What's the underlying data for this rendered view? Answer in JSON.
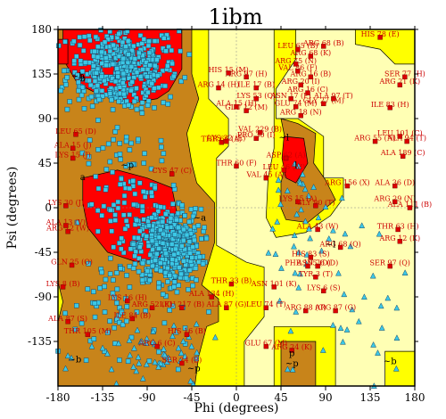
{
  "chart_data": {
    "type": "scatter",
    "title": "1ibm",
    "xlabel": "Phi (degrees)",
    "ylabel": "Psi (degrees)",
    "xlim": [
      -180,
      180
    ],
    "ylim": [
      -180,
      180
    ],
    "xticks": [
      -180,
      -135,
      -90,
      -45,
      0,
      45,
      90,
      135,
      180
    ],
    "yticks": [
      -135,
      -90,
      -45,
      0,
      45,
      90,
      135,
      180
    ],
    "xtick_labels": [
      "-180",
      "-135",
      "-90",
      "-45",
      "0",
      "45",
      "90",
      "135",
      "180"
    ],
    "ytick_labels": [
      "-135",
      "-90",
      "-45",
      "0",
      "45",
      "90",
      "135",
      "180"
    ],
    "colors": {
      "core": "#ff0000",
      "allowed": "#c8841a",
      "generous": "#ffff00",
      "background": "#ffffb4",
      "points_general": "#3cc8e6",
      "points_outlier": "#dc0000"
    },
    "grid": false,
    "region_labels": [
      {
        "text": "b",
        "x": -155,
        "y": 128
      },
      {
        "text": "a",
        "x": -155,
        "y": 28
      },
      {
        "text": "~a",
        "x": -37,
        "y": -13
      },
      {
        "text": "~b",
        "x": -163,
        "y": -156
      },
      {
        "text": "~b",
        "x": 155,
        "y": -158
      },
      {
        "text": "~p",
        "x": -110,
        "y": 40
      },
      {
        "text": "~p",
        "x": -43,
        "y": -165
      },
      {
        "text": "~l",
        "x": 95,
        "y": -40
      },
      {
        "text": "l",
        "x": 60,
        "y": 40
      },
      {
        "text": "~l",
        "x": 48,
        "y": 68
      },
      {
        "text": "p",
        "x": 56,
        "y": -150
      },
      {
        "text": "~p",
        "x": 56,
        "y": -160
      },
      {
        "text": "~b",
        "x": -160,
        "y": 130
      }
    ],
    "annotations": [
      {
        "text": "HIS 78 (E)",
        "x": 145,
        "y": 172
      },
      {
        "text": "ARG 68 (B)",
        "x": 88,
        "y": 163
      },
      {
        "text": "LEU 65 (B)",
        "x": 62,
        "y": 160
      },
      {
        "text": "ARG 68 (K)",
        "x": 75,
        "y": 153
      },
      {
        "text": "ARG 75 (N)",
        "x": 60,
        "y": 145
      },
      {
        "text": "VAL 86 (F)",
        "x": 62,
        "y": 138
      },
      {
        "text": "ARG 16 (B)",
        "x": 75,
        "y": 132
      },
      {
        "text": "ARG 20 (I)",
        "x": 65,
        "y": 124
      },
      {
        "text": "ARG 16 (C)",
        "x": 72,
        "y": 116
      },
      {
        "text": "ARG 14 (H)",
        "x": -18,
        "y": 121
      },
      {
        "text": "ILE 17 (B)",
        "x": 20,
        "y": 121
      },
      {
        "text": "ARG 97 (H)",
        "x": 10,
        "y": 132
      },
      {
        "text": "HIS 15 (M)",
        "x": -8,
        "y": 136
      },
      {
        "text": "GLY 27 (M)",
        "x": 88,
        "y": 105
      },
      {
        "text": "ASN 17 (P)",
        "x": 55,
        "y": 110
      },
      {
        "text": "LYS 53 (Q)",
        "x": 20,
        "y": 110
      },
      {
        "text": "ALA 97 (T)",
        "x": 98,
        "y": 110
      },
      {
        "text": "SER 77 (H)",
        "x": 170,
        "y": 132
      },
      {
        "text": "ARG 21 (K)",
        "x": 165,
        "y": 124
      },
      {
        "text": "ALA 15 (H)",
        "x": 0,
        "y": 102
      },
      {
        "text": "GLU 74 (M)",
        "x": 60,
        "y": 102
      },
      {
        "text": "GLU 12 (M)",
        "x": 10,
        "y": 98
      },
      {
        "text": "ILE 83 (H)",
        "x": 155,
        "y": 101
      },
      {
        "text": "ARG 18 (N)",
        "x": 65,
        "y": 93
      },
      {
        "text": "LEU 65 (D)",
        "x": -162,
        "y": 74
      },
      {
        "text": "ALA 15 (J)",
        "x": -165,
        "y": 60
      },
      {
        "text": "LYS 15 (J)",
        "x": -165,
        "y": 50
      },
      {
        "text": "LEU 101 (C)",
        "x": 165,
        "y": 72
      },
      {
        "text": "ARG 55 (N)",
        "x": 140,
        "y": 67
      },
      {
        "text": "ALA 94 (T)",
        "x": 172,
        "y": 67
      },
      {
        "text": "VAL 229 (B)",
        "x": 24,
        "y": 76
      },
      {
        "text": "PRO 30 (I)",
        "x": 20,
        "y": 70
      },
      {
        "text": "LYS 32 (E)",
        "x": -10,
        "y": 67
      },
      {
        "text": "ALA 189 (C)",
        "x": 168,
        "y": 52
      },
      {
        "text": "THR 66 (A)",
        "x": -15,
        "y": 66
      },
      {
        "text": "ASP 62 (A)",
        "x": 50,
        "y": 50
      },
      {
        "text": "THR 60 (F)",
        "x": 0,
        "y": 42
      },
      {
        "text": "CYS 47 (C)",
        "x": -65,
        "y": 34
      },
      {
        "text": "LEU 46 (M)",
        "x": 48,
        "y": 38
      },
      {
        "text": "VAL 45 (A)",
        "x": 30,
        "y": 30
      },
      {
        "text": "ARG 156 (X)",
        "x": 112,
        "y": 22
      },
      {
        "text": "ALA 36 (D)",
        "x": 160,
        "y": 22
      },
      {
        "text": "LYS 30 (J)",
        "x": -172,
        "y": 2
      },
      {
        "text": "LYS 15 (A)",
        "x": 62,
        "y": 6
      },
      {
        "text": "GLY 90 (T)",
        "x": 80,
        "y": 2
      },
      {
        "text": "ARG 29 (N)",
        "x": 160,
        "y": 6
      },
      {
        "text": "ALA 111 (B)",
        "x": 175,
        "y": 0
      },
      {
        "text": "ALA 13 (V)",
        "x": -172,
        "y": -18
      },
      {
        "text": "ARG 12 (W)",
        "x": -170,
        "y": -24
      },
      {
        "text": "ALA 43 (W)",
        "x": 82,
        "y": -22
      },
      {
        "text": "THR 63 (H)",
        "x": 163,
        "y": -22
      },
      {
        "text": "ARG 12 (K)",
        "x": 165,
        "y": -34
      },
      {
        "text": "ARG 68 (Q)",
        "x": 105,
        "y": -40
      },
      {
        "text": "HIS 83 (S)",
        "x": 75,
        "y": -50
      },
      {
        "text": "PHE 105 (D)",
        "x": 72,
        "y": -59
      },
      {
        "text": "ASN 76 (D)",
        "x": 82,
        "y": -59
      },
      {
        "text": "SER 97 (Q)",
        "x": 155,
        "y": -59
      },
      {
        "text": "GLN 25 (O)",
        "x": -166,
        "y": -58
      },
      {
        "text": "TYR 3 (T)",
        "x": 80,
        "y": -70
      },
      {
        "text": "LYS 8 (B)",
        "x": -175,
        "y": -80
      },
      {
        "text": "THR 33 (B)",
        "x": -5,
        "y": -77
      },
      {
        "text": "ASN 101 (K)",
        "x": 38,
        "y": -80
      },
      {
        "text": "LYS 6 (S)",
        "x": 88,
        "y": -84
      },
      {
        "text": "LYS 16 (H)",
        "x": -110,
        "y": -94
      },
      {
        "text": "ALA 134 (H)",
        "x": -25,
        "y": -90
      },
      {
        "text": "ARG 52 (K)",
        "x": -85,
        "y": -101
      },
      {
        "text": "LEU 217 (B)",
        "x": -55,
        "y": -101
      },
      {
        "text": "ALA 87 (G)",
        "x": -10,
        "y": -101
      },
      {
        "text": "LEU 74 (T)",
        "x": 30,
        "y": -101
      },
      {
        "text": "ARG 88 (C)",
        "x": 70,
        "y": -104
      },
      {
        "text": "ARG 87 (G)",
        "x": 100,
        "y": -104
      },
      {
        "text": "ALA 87 (S)",
        "x": -170,
        "y": -115
      },
      {
        "text": "ILE 84 (B)",
        "x": -105,
        "y": -112
      },
      {
        "text": "THR 105 (M)",
        "x": -150,
        "y": -128
      },
      {
        "text": "HIS 16 (B)",
        "x": -50,
        "y": -128
      },
      {
        "text": "ARG 6 (C)",
        "x": -80,
        "y": -140
      },
      {
        "text": "GLU 67 (M)",
        "x": 30,
        "y": -140
      },
      {
        "text": "ARG 24 (K)",
        "x": 56,
        "y": -144
      },
      {
        "text": "SER 24 (B)",
        "x": -55,
        "y": -157
      }
    ]
  }
}
